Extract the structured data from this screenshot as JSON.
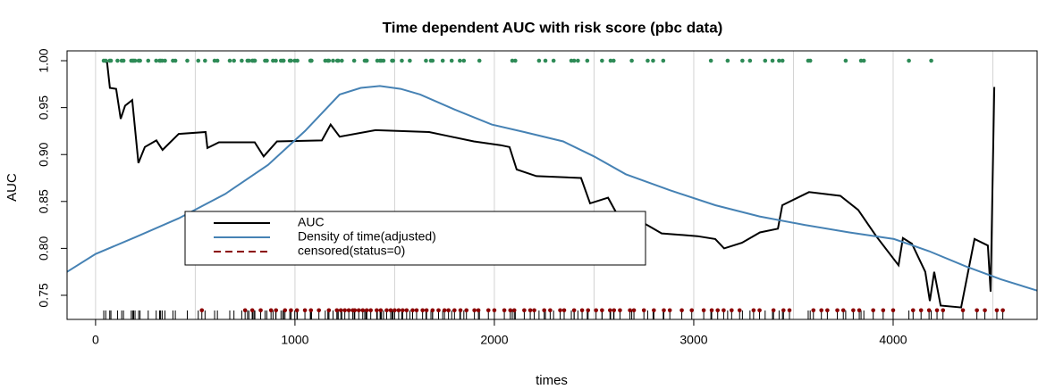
{
  "chart_data": {
    "type": "line",
    "title": "Time dependent AUC with risk score (pbc data)",
    "x_label": "times",
    "y_label": "AUC",
    "xlim": [
      -143,
      4722
    ],
    "ylim": [
      0.7243,
      1.0105
    ],
    "xticks": [
      0,
      1000,
      2000,
      3000,
      4000
    ],
    "xgrid": [
      0,
      500,
      1000,
      1500,
      2000,
      2500,
      3000,
      3500,
      4000,
      4500
    ],
    "yticks": [
      0.75,
      {
        "value": 0.8,
        "label": "0.80"
      },
      0.85,
      {
        "value": 0.9,
        "label": "0.90"
      },
      0.95,
      {
        "value": 1.0,
        "label": "1.00"
      }
    ],
    "series": [
      {
        "name": "AUC",
        "color": "#000000",
        "x": [
          36,
          58,
          72,
          103,
          126,
          148,
          184,
          215,
          247,
          305,
          336,
          417,
          552,
          561,
          619,
          798,
          843,
          910,
          1135,
          1179,
          1224,
          1404,
          1673,
          1762,
          1897,
          2031,
          2076,
          2112,
          2211,
          2435,
          2480,
          2570,
          2614,
          2749,
          2839,
          3018,
          3108,
          3152,
          3242,
          3332,
          3422,
          3444,
          3578,
          3735,
          3825,
          3915,
          4027,
          4049,
          4094,
          4161,
          4184,
          4206,
          4238,
          4341,
          4408,
          4475,
          4489,
          4507
        ],
        "values": [
          1.0,
          0.998,
          0.971,
          0.97,
          0.938,
          0.952,
          0.958,
          0.891,
          0.908,
          0.915,
          0.905,
          0.922,
          0.924,
          0.907,
          0.913,
          0.913,
          0.898,
          0.914,
          0.915,
          0.932,
          0.919,
          0.926,
          0.924,
          0.92,
          0.914,
          0.91,
          0.908,
          0.884,
          0.877,
          0.875,
          0.848,
          0.854,
          0.837,
          0.827,
          0.816,
          0.813,
          0.81,
          0.8,
          0.806,
          0.817,
          0.821,
          0.846,
          0.86,
          0.856,
          0.841,
          0.813,
          0.782,
          0.811,
          0.805,
          0.775,
          0.744,
          0.775,
          0.739,
          0.737,
          0.81,
          0.803,
          0.754,
          0.972
        ]
      },
      {
        "name": "Density of time(adjusted)",
        "color": "#4682b4",
        "x": [
          -143,
          0,
          200,
          417,
          650,
          865,
          1050,
          1224,
          1330,
          1426,
          1530,
          1628,
          1800,
          1987,
          2150,
          2345,
          2500,
          2659,
          2880,
          3108,
          3330,
          3556,
          3780,
          4004,
          4180,
          4363,
          4540,
          4722
        ],
        "values": [
          0.775,
          0.794,
          0.812,
          0.832,
          0.858,
          0.889,
          0.925,
          0.964,
          0.971,
          0.973,
          0.97,
          0.964,
          0.948,
          0.932,
          0.924,
          0.914,
          0.898,
          0.879,
          0.862,
          0.846,
          0.834,
          0.825,
          0.817,
          0.81,
          0.797,
          0.781,
          0.767,
          0.755
        ]
      }
    ],
    "censored": {
      "name": "censored(status=0)",
      "color": "#8b0000",
      "y": 0.734,
      "x": [
        533,
        750,
        786,
        828,
        880,
        905,
        950,
        980,
        1010,
        1050,
        1080,
        1120,
        1170,
        1210,
        1230,
        1250,
        1270,
        1290,
        1300,
        1320,
        1340,
        1360,
        1380,
        1410,
        1430,
        1460,
        1480,
        1500,
        1520,
        1540,
        1560,
        1590,
        1610,
        1640,
        1660,
        1690,
        1720,
        1750,
        1770,
        1800,
        1830,
        1860,
        1900,
        1920,
        1970,
        2000,
        2050,
        2080,
        2100,
        2150,
        2180,
        2200,
        2250,
        2280,
        2330,
        2350,
        2400,
        2440,
        2470,
        2510,
        2540,
        2580,
        2600,
        2630,
        2680,
        2700,
        2750,
        2800,
        2850,
        2880,
        2940,
        2990,
        3050,
        3090,
        3120,
        3150,
        3190,
        3230,
        3300,
        3330,
        3400,
        3450,
        3480,
        3600,
        3640,
        3670,
        3720,
        3750,
        3800,
        3830,
        3900,
        3950,
        4000,
        4100,
        4140,
        4180,
        4220,
        4250,
        4350,
        4420,
        4460,
        4520,
        4550
      ]
    },
    "events": {
      "color": "#2e8b57",
      "y": 1.0,
      "x": [
        41,
        51,
        71,
        77,
        110,
        131,
        140,
        179,
        186,
        191,
        198,
        216,
        223,
        264,
        304,
        321,
        326,
        334,
        348,
        388,
        400,
        460,
        515,
        549,
        597,
        611,
        673,
        694,
        733,
        762,
        769,
        786,
        790,
        797,
        799,
        850,
        859,
        890,
        904,
        930,
        939,
        943,
        974,
        980,
        999,
        1012,
        1077,
        1080,
        1083,
        1152,
        1165,
        1170,
        1191,
        1212,
        1217,
        1235,
        1297,
        1350,
        1356,
        1360,
        1413,
        1427,
        1434,
        1444,
        1487,
        1492,
        1536,
        1576,
        1657,
        1682,
        1690,
        1741,
        1786,
        1827,
        1847,
        1925,
        2090,
        2105,
        2224,
        2256,
        2297,
        2386,
        2400,
        2419,
        2466,
        2540,
        2583,
        2598,
        2689,
        2769,
        2796,
        2847,
        3086,
        3170,
        3244,
        3282,
        3358,
        3395,
        3428,
        3445,
        3574,
        3584,
        3762,
        3839,
        3853,
        4079,
        4191
      ]
    }
  }
}
